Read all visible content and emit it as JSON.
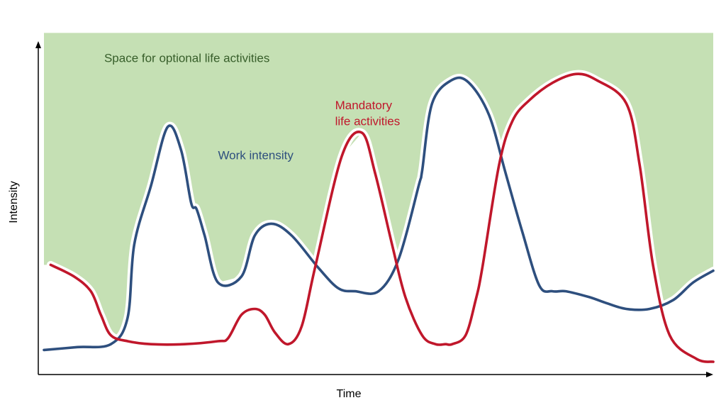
{
  "chart_data": {
    "type": "line",
    "title": "",
    "xlabel": "Time",
    "ylabel": "Intensity",
    "xlim": [
      0,
      100
    ],
    "ylim": [
      0,
      100
    ],
    "grid": false,
    "legend": "none",
    "series": [
      {
        "name": "Work intensity",
        "color": "#2e4f7e",
        "x": [
          0,
          5,
          10,
          12.5,
          13.5,
          16,
          18.5,
          20.5,
          22,
          22.8,
          24,
          26,
          29.5,
          31.5,
          34,
          37,
          41,
          44,
          46.5,
          50,
          53,
          56,
          56.5,
          58,
          61,
          63.5,
          66.5,
          69,
          71.5,
          74,
          76,
          78,
          81.5,
          84,
          87,
          90.5,
          94,
          97,
          100
        ],
        "y": [
          4,
          5,
          6,
          15,
          40,
          60,
          80,
          72,
          54,
          52,
          43,
          27,
          29,
          43,
          47,
          43,
          32,
          25,
          24,
          24,
          35,
          60,
          65,
          88,
          96,
          95,
          84,
          64,
          44,
          26,
          24,
          24,
          22,
          20,
          18,
          18,
          21,
          27,
          31
        ]
      },
      {
        "name": "Mandatory life activities",
        "color": "#c0172b",
        "x": [
          1,
          4.5,
          7,
          8.5,
          10,
          12.5,
          16,
          21,
          26,
          27.5,
          29.5,
          31.5,
          33,
          34.5,
          36.5,
          38.5,
          40.5,
          44.5,
          47.5,
          49.5,
          52,
          54,
          56.5,
          58.5,
          60,
          61,
          63,
          64.5,
          65.5,
          68,
          70,
          72.5,
          76,
          79.5,
          82.5,
          87,
          89,
          91,
          93.5,
          97.5,
          100
        ],
        "y": [
          33,
          29,
          24,
          16,
          9,
          7,
          6,
          6,
          7,
          8,
          16,
          18,
          16,
          10,
          6,
          12,
          32,
          70,
          78,
          64,
          40,
          22,
          9,
          6,
          6,
          6,
          9,
          21,
          32,
          67,
          82,
          89,
          95,
          98,
          96,
          88,
          67,
          33,
          9,
          1,
          0
        ]
      }
    ],
    "annotations": [
      {
        "text": "Space for optional life activities",
        "x": 9,
        "y": 102,
        "color": "#375e2a"
      },
      {
        "text": "Work intensity",
        "x": 26,
        "y": 69,
        "color": "#2e4f7e"
      },
      {
        "text": "Mandatory",
        "x": 43.5,
        "y": 86,
        "color": "#c0172b"
      },
      {
        "text": "life activities",
        "x": 43.5,
        "y": 80.5,
        "color": "#c0172b"
      }
    ],
    "shaded_area": {
      "description": "region above the maximum of both curves",
      "color": "#c5e0b4",
      "top": 112
    }
  }
}
